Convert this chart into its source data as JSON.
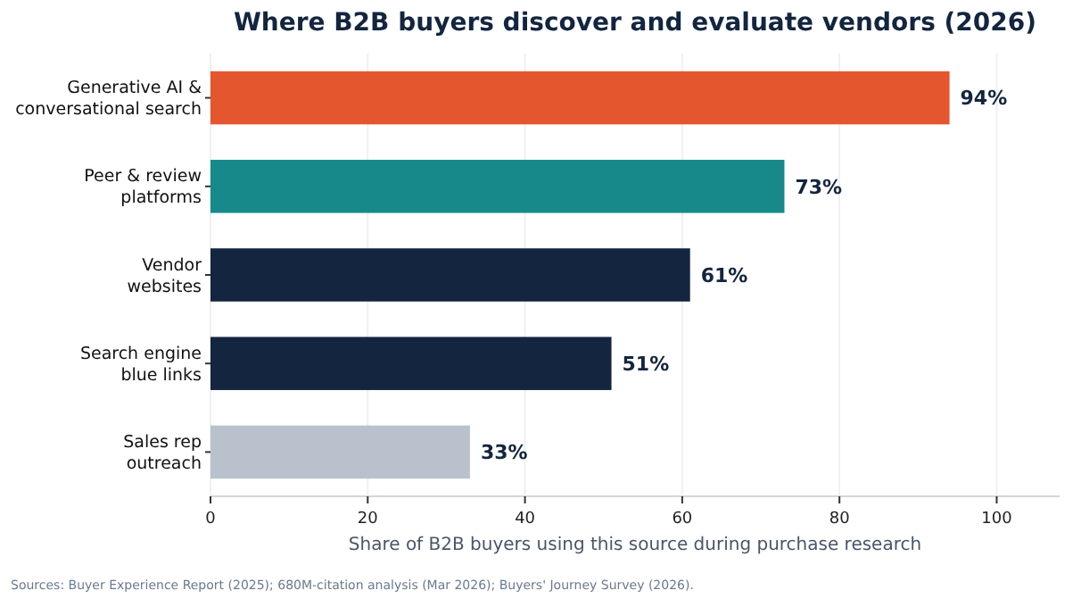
{
  "chart_data": {
    "type": "bar",
    "orientation": "horizontal",
    "title": "Where B2B buyers discover and evaluate vendors (2026)",
    "xlabel": "Share of B2B buyers using this source during purchase research",
    "categories": [
      "Generative AI &\nconversational search",
      "Peer & review\nplatforms",
      "Vendor\nwebsites",
      "Search engine\nblue links",
      "Sales rep\noutreach"
    ],
    "values": [
      94,
      73,
      61,
      51,
      33
    ],
    "colors": [
      "#e4572e",
      "#17898a",
      "#13253f",
      "#13253f",
      "#b8c1cc"
    ],
    "value_labels": [
      "94%",
      "73%",
      "61%",
      "51%",
      "33%"
    ],
    "xlim": [
      0,
      108
    ],
    "xticks": [
      0,
      20,
      40,
      60,
      80,
      100
    ],
    "grid": "x",
    "annotations": [
      "Sources: Buyer Experience Report (2025); 680M-citation analysis (Mar 2026); Buyers' Journey Survey (2026)."
    ]
  }
}
